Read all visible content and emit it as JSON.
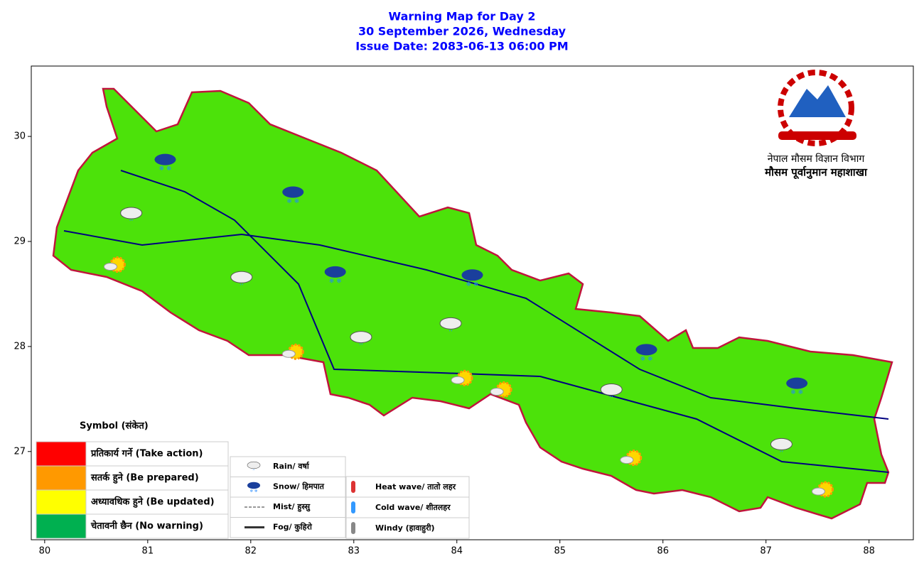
{
  "header": {
    "title_lines": [
      "Warning Map for Day 2",
      "30 September 2026, Wednesday",
      "Issue Date: 2083-06-13 06:00 PM"
    ]
  },
  "map": {
    "xlim": [
      79.87,
      88.43
    ],
    "ylim": [
      26.16,
      30.67
    ],
    "xticks": [
      80,
      81,
      82,
      83,
      84,
      85,
      86,
      87,
      88
    ],
    "yticks": [
      27,
      28,
      29,
      30
    ],
    "fill": "#4ce20a",
    "symbols": [
      {
        "kind": "rain",
        "lon": 80.84,
        "lat": 29.27
      },
      {
        "kind": "rain",
        "lon": 81.91,
        "lat": 28.66
      },
      {
        "kind": "rain",
        "lon": 83.07,
        "lat": 28.09
      },
      {
        "kind": "rain",
        "lon": 83.94,
        "lat": 28.22
      },
      {
        "kind": "rain",
        "lon": 85.5,
        "lat": 27.59
      },
      {
        "kind": "rain",
        "lon": 87.15,
        "lat": 27.07
      },
      {
        "kind": "snow",
        "lon": 81.17,
        "lat": 29.78
      },
      {
        "kind": "snow",
        "lon": 82.41,
        "lat": 29.47
      },
      {
        "kind": "snow",
        "lon": 82.82,
        "lat": 28.71
      },
      {
        "kind": "snow",
        "lon": 84.15,
        "lat": 28.68
      },
      {
        "kind": "snow",
        "lon": 85.84,
        "lat": 27.97
      },
      {
        "kind": "snow",
        "lon": 87.3,
        "lat": 27.65
      },
      {
        "kind": "sun",
        "lon": 80.68,
        "lat": 28.78
      },
      {
        "kind": "sun",
        "lon": 82.41,
        "lat": 27.95
      },
      {
        "kind": "sun",
        "lon": 84.05,
        "lat": 27.7
      },
      {
        "kind": "sun",
        "lon": 84.43,
        "lat": 27.59
      },
      {
        "kind": "sun",
        "lon": 85.69,
        "lat": 26.94
      },
      {
        "kind": "sun",
        "lon": 87.55,
        "lat": 26.64
      }
    ]
  },
  "logo": {
    "line1": "नेपाल मौसम विज्ञान विभाग",
    "line2": "मौसम पूर्वानुमान महाशाखा"
  },
  "legend": {
    "title": "Symbol (संकेत)",
    "levels": [
      {
        "label": "प्रतिकार्य गर्ने (Take action)",
        "color": "#ff0000"
      },
      {
        "label": "सतर्क हुने (Be prepared)",
        "color": "#ff9900"
      },
      {
        "label": "अध्यावधिक हुने (Be updated)",
        "color": "#ffff00"
      },
      {
        "label": "चेतावनी छैन (No warning)",
        "color": "#00b050"
      }
    ],
    "weather": [
      "Rain/ वर्षा",
      "Snow/ हिमपात",
      "Mist/ हुस्सु",
      "Fog/ कुहिरो"
    ],
    "hazards": [
      "Heat wave/ तातो लहर",
      "Cold wave/ शीतलहर",
      "Windy (हावाहुरी)"
    ]
  }
}
